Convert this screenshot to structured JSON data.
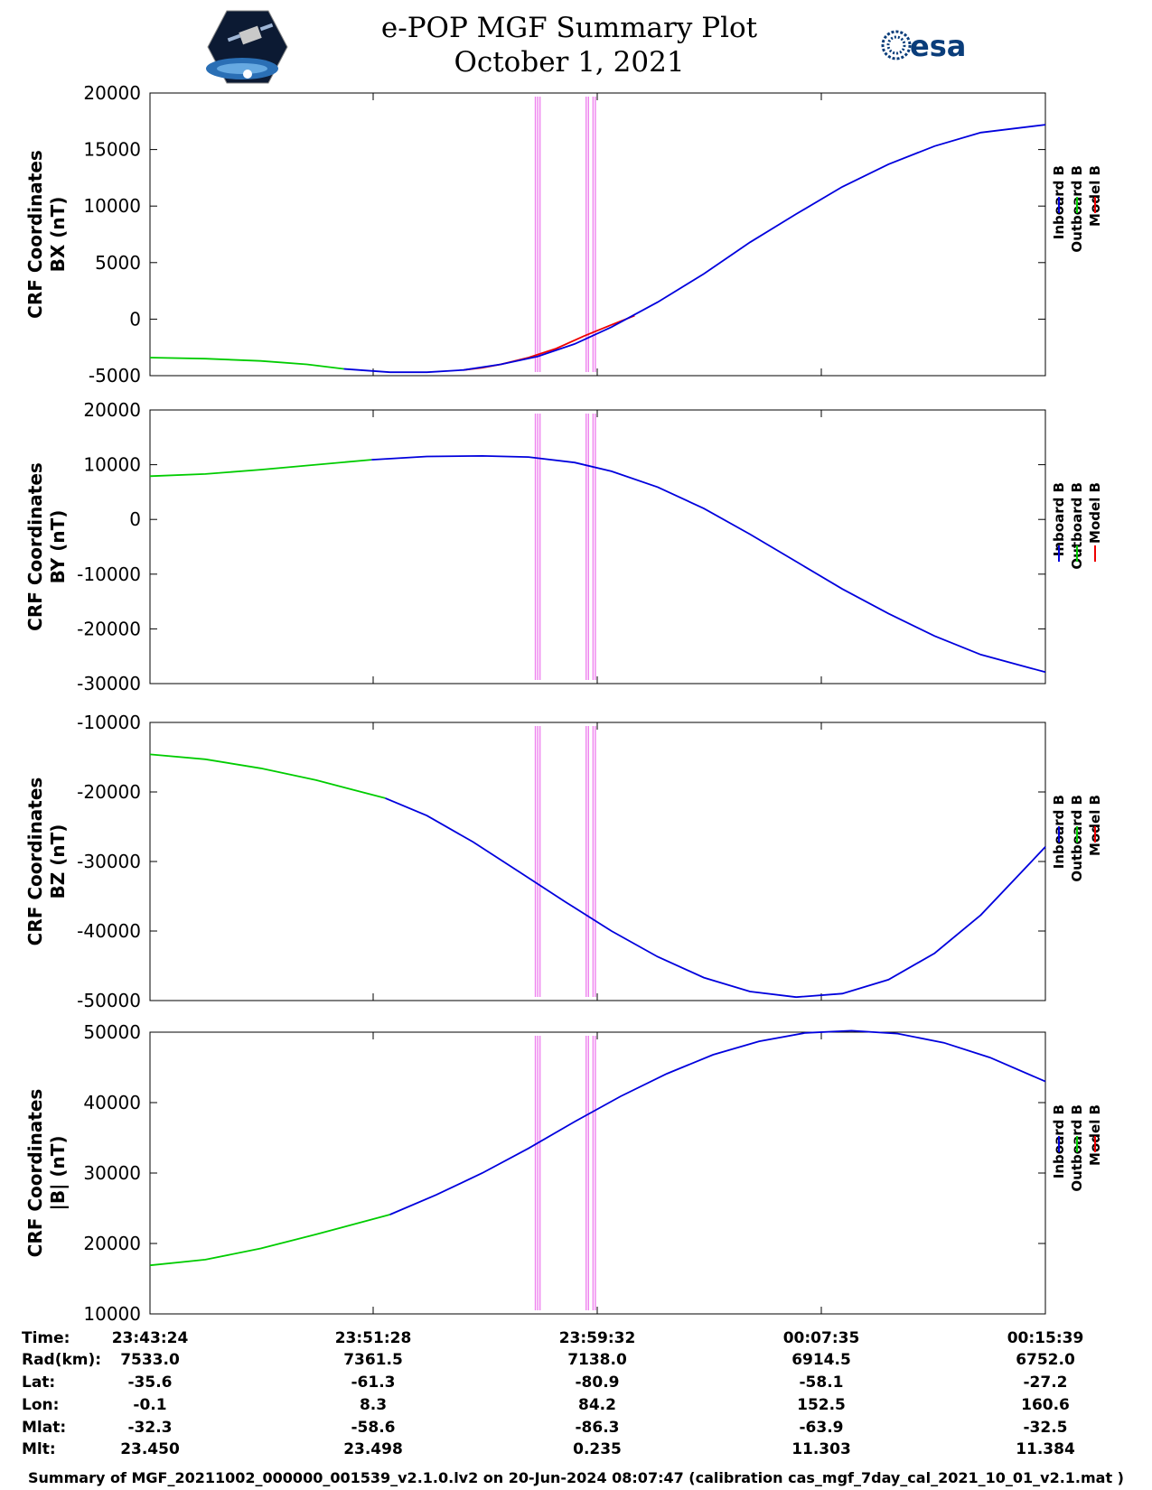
{
  "header": {
    "title_line1": "e-POP MGF Summary Plot",
    "title_line2": "October 1, 2021",
    "logo_left": "cassiope-mission-logo",
    "logo_right_text": "esa"
  },
  "footer": "Summary of MGF_20211002_000000_001539_v2.1.0.lv2 on 20-Jun-2024 08:07:47 (calibration cas_mgf_7day_cal_2021_10_01_v2.1.mat )",
  "colors": {
    "inboard": "#0000dd",
    "outboard": "#00cc00",
    "model": "#ee0000",
    "marker": "#ee82ee"
  },
  "chart_data": [
    {
      "type": "line",
      "ylabel_line1": "CRF Coordinates",
      "ylabel_line2": "BX (nT)",
      "ylim": [
        -5000,
        20000
      ],
      "yticks": [
        "20000",
        "15000",
        "10000",
        "5000",
        "0",
        "-5000"
      ],
      "xlim": [
        0,
        1940
      ],
      "series": [
        {
          "name": "Outboard B",
          "x": [
            0,
            120,
            240,
            340,
            420
          ],
          "y": [
            -3400,
            -3500,
            -3700,
            -4000,
            -4400
          ]
        },
        {
          "name": "Inboard B",
          "x": [
            420,
            520,
            600,
            680,
            760,
            840,
            920,
            1000,
            1100,
            1200,
            1300,
            1400,
            1500,
            1600,
            1700,
            1800,
            1940
          ],
          "y": [
            -4400,
            -4700,
            -4700,
            -4500,
            -4000,
            -3300,
            -2200,
            -700,
            1500,
            4000,
            6800,
            9300,
            11700,
            13700,
            15300,
            16500,
            17200
          ]
        },
        {
          "name": "Model B",
          "x": [
            680,
            720,
            760,
            820,
            880,
            940,
            1000,
            1050
          ],
          "y": [
            -4500,
            -4300,
            -4000,
            -3400,
            -2600,
            -1500,
            -500,
            300
          ]
        }
      ],
      "legend": [
        "Inboard B",
        "Outboard B",
        "Model B"
      ]
    },
    {
      "type": "line",
      "ylabel_line1": "CRF Coordinates",
      "ylabel_line2": "BY (nT)",
      "ylim": [
        -30000,
        20000
      ],
      "yticks": [
        "20000",
        "10000",
        "0",
        "-10000",
        "-20000",
        "-30000"
      ],
      "xlim": [
        0,
        1940
      ],
      "series": [
        {
          "name": "Outboard B",
          "x": [
            0,
            120,
            240,
            360,
            480
          ],
          "y": [
            7900,
            8300,
            9100,
            10000,
            10900
          ]
        },
        {
          "name": "Inboard B",
          "x": [
            480,
            600,
            720,
            820,
            920,
            1000,
            1100,
            1200,
            1300,
            1400,
            1500,
            1600,
            1700,
            1800,
            1940
          ],
          "y": [
            10900,
            11500,
            11600,
            11400,
            10400,
            8800,
            5900,
            2000,
            -2700,
            -7700,
            -12700,
            -17200,
            -21300,
            -24700,
            -27900
          ]
        }
      ],
      "legend": [
        "Inboard B",
        "Outboard B",
        "Model B"
      ]
    },
    {
      "type": "line",
      "ylabel_line1": "CRF Coordinates",
      "ylabel_line2": "BZ (nT)",
      "ylim": [
        -50000,
        -10000
      ],
      "yticks": [
        "-10000",
        "-20000",
        "-30000",
        "-40000",
        "-50000"
      ],
      "xlim": [
        0,
        1940
      ],
      "series": [
        {
          "name": "Outboard B",
          "x": [
            0,
            120,
            240,
            360,
            510
          ],
          "y": [
            -14600,
            -15300,
            -16600,
            -18300,
            -20900
          ]
        },
        {
          "name": "Inboard B",
          "x": [
            510,
            600,
            700,
            800,
            900,
            1000,
            1100,
            1200,
            1300,
            1400,
            1500,
            1600,
            1700,
            1800,
            1940
          ],
          "y": [
            -20900,
            -23400,
            -27200,
            -31500,
            -35800,
            -40000,
            -43700,
            -46700,
            -48700,
            -49500,
            -49000,
            -47000,
            -43200,
            -37700,
            -27900
          ]
        }
      ],
      "legend": [
        "Inboard B",
        "Outboard B",
        "Model B"
      ]
    },
    {
      "type": "line",
      "ylabel_line1": "CRF Coordinates",
      "ylabel_line2": "|B| (nT)",
      "ylim": [
        10000,
        50000
      ],
      "yticks": [
        "50000",
        "40000",
        "30000",
        "20000",
        "10000"
      ],
      "xlim": [
        0,
        1940
      ],
      "series": [
        {
          "name": "Outboard B",
          "x": [
            0,
            120,
            240,
            360,
            520
          ],
          "y": [
            16900,
            17700,
            19300,
            21300,
            24100
          ]
        },
        {
          "name": "Inboard B",
          "x": [
            520,
            620,
            720,
            820,
            920,
            1020,
            1120,
            1220,
            1320,
            1420,
            1520,
            1620,
            1720,
            1820,
            1940
          ],
          "y": [
            24100,
            26900,
            30000,
            33500,
            37300,
            40900,
            44100,
            46800,
            48700,
            49900,
            50200,
            49800,
            48500,
            46400,
            43000
          ]
        }
      ],
      "legend": [
        "Inboard B",
        "Outboard B",
        "Model B"
      ]
    }
  ],
  "marker_lines_x": [
    835,
    840,
    845,
    945,
    950,
    960,
    965
  ],
  "ephemeris": {
    "row_labels": [
      "Time:",
      "Rad(km):",
      "Lat:",
      "Lon:",
      "Mlat:",
      "Mlt:"
    ],
    "columns": [
      [
        "23:43:24",
        "7533.0",
        "-35.6",
        "-0.1",
        "-32.3",
        "23.450"
      ],
      [
        "23:51:28",
        "7361.5",
        "-61.3",
        "8.3",
        "-58.6",
        "23.498"
      ],
      [
        "23:59:32",
        "7138.0",
        "-80.9",
        "84.2",
        "-86.3",
        "0.235"
      ],
      [
        "00:07:35",
        "6914.5",
        "-58.1",
        "152.5",
        "-63.9",
        "11.303"
      ],
      [
        "00:15:39",
        "6752.0",
        "-27.2",
        "160.6",
        "-32.5",
        "11.384"
      ]
    ]
  }
}
